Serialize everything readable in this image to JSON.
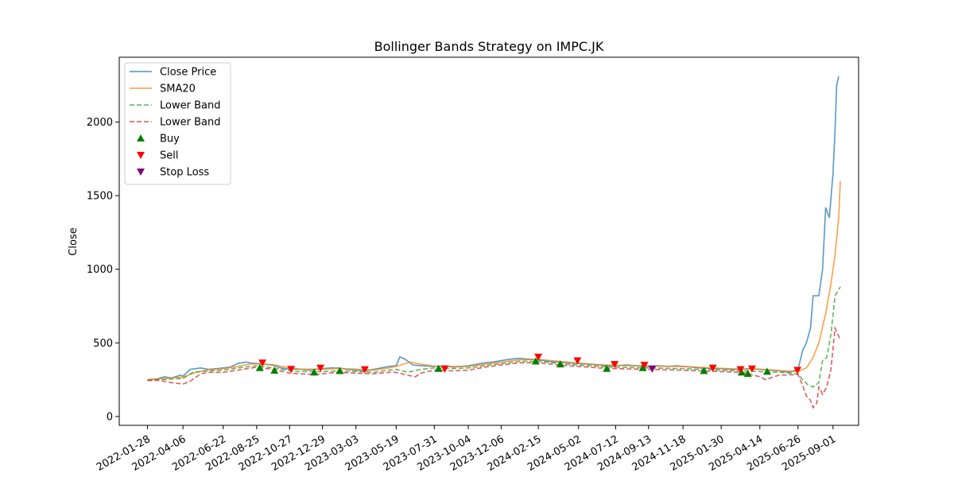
{
  "chart_data": {
    "type": "line",
    "title": "Bollinger Bands Strategy on IMPC.JK",
    "xlabel": "",
    "ylabel": "Close",
    "xlim": [
      "2021-12-05",
      "2025-10-20"
    ],
    "ylim": [
      -60,
      2440
    ],
    "yticks": [
      0,
      500,
      1000,
      1500,
      2000
    ],
    "xticks": [
      "2022-01-28",
      "2022-04-06",
      "2022-06-22",
      "2022-08-25",
      "2022-10-27",
      "2022-12-29",
      "2023-03-03",
      "2023-05-19",
      "2023-07-31",
      "2023-10-04",
      "2023-12-06",
      "2024-02-15",
      "2024-05-02",
      "2024-07-12",
      "2024-09-13",
      "2024-11-18",
      "2025-01-30",
      "2025-04-14",
      "2025-06-26",
      "2025-09-01"
    ],
    "grid": false,
    "legend_position": "upper left",
    "series": [
      {
        "name": "Close Price",
        "style": "solid",
        "color": "#1f77b4",
        "points": [
          [
            "2022-01-28",
            250
          ],
          [
            "2022-02-15",
            255
          ],
          [
            "2022-03-01",
            270
          ],
          [
            "2022-03-15",
            262
          ],
          [
            "2022-04-01",
            280
          ],
          [
            "2022-04-06",
            275
          ],
          [
            "2022-04-20",
            320
          ],
          [
            "2022-05-10",
            330
          ],
          [
            "2022-05-25",
            320
          ],
          [
            "2022-06-10",
            325
          ],
          [
            "2022-06-22",
            330
          ],
          [
            "2022-07-05",
            335
          ],
          [
            "2022-07-20",
            360
          ],
          [
            "2022-08-05",
            370
          ],
          [
            "2022-08-15",
            362
          ],
          [
            "2022-08-25",
            360
          ],
          [
            "2022-09-10",
            355
          ],
          [
            "2022-09-25",
            348
          ],
          [
            "2022-10-10",
            330
          ],
          [
            "2022-10-27",
            320
          ],
          [
            "2022-11-15",
            322
          ],
          [
            "2022-12-01",
            315
          ],
          [
            "2022-12-15",
            320
          ],
          [
            "2022-12-29",
            325
          ],
          [
            "2023-01-15",
            330
          ],
          [
            "2023-02-01",
            328
          ],
          [
            "2023-02-15",
            320
          ],
          [
            "2023-03-03",
            315
          ],
          [
            "2023-03-20",
            310
          ],
          [
            "2023-04-05",
            320
          ],
          [
            "2023-04-20",
            330
          ],
          [
            "2023-05-05",
            340
          ],
          [
            "2023-05-19",
            345
          ],
          [
            "2023-05-26",
            405
          ],
          [
            "2023-06-05",
            390
          ],
          [
            "2023-06-20",
            350
          ],
          [
            "2023-07-05",
            345
          ],
          [
            "2023-07-31",
            340
          ],
          [
            "2023-08-20",
            345
          ],
          [
            "2023-09-05",
            335
          ],
          [
            "2023-09-20",
            340
          ],
          [
            "2023-10-04",
            345
          ],
          [
            "2023-10-20",
            355
          ],
          [
            "2023-11-05",
            365
          ],
          [
            "2023-11-20",
            370
          ],
          [
            "2023-12-06",
            380
          ],
          [
            "2023-12-25",
            390
          ],
          [
            "2024-01-10",
            395
          ],
          [
            "2024-01-25",
            390
          ],
          [
            "2024-02-15",
            385
          ],
          [
            "2024-03-05",
            375
          ],
          [
            "2024-03-25",
            370
          ],
          [
            "2024-04-10",
            365
          ],
          [
            "2024-05-02",
            360
          ],
          [
            "2024-05-20",
            355
          ],
          [
            "2024-06-10",
            350
          ],
          [
            "2024-06-25",
            345
          ],
          [
            "2024-07-12",
            345
          ],
          [
            "2024-08-01",
            350
          ],
          [
            "2024-08-20",
            345
          ],
          [
            "2024-09-01",
            345
          ],
          [
            "2024-09-13",
            340
          ],
          [
            "2024-10-01",
            345
          ],
          [
            "2024-10-20",
            340
          ],
          [
            "2024-11-05",
            345
          ],
          [
            "2024-11-18",
            340
          ],
          [
            "2024-12-05",
            335
          ],
          [
            "2024-12-20",
            330
          ],
          [
            "2025-01-10",
            325
          ],
          [
            "2025-01-30",
            325
          ],
          [
            "2025-02-20",
            320
          ],
          [
            "2025-03-10",
            320
          ],
          [
            "2025-03-25",
            325
          ],
          [
            "2025-04-14",
            320
          ],
          [
            "2025-05-01",
            315
          ],
          [
            "2025-05-20",
            310
          ],
          [
            "2025-06-10",
            300
          ],
          [
            "2025-06-26",
            320
          ],
          [
            "2025-07-05",
            450
          ],
          [
            "2025-07-12",
            500
          ],
          [
            "2025-07-20",
            600
          ],
          [
            "2025-07-25",
            820
          ],
          [
            "2025-08-05",
            820
          ],
          [
            "2025-08-12",
            1000
          ],
          [
            "2025-08-18",
            1420
          ],
          [
            "2025-08-25",
            1350
          ],
          [
            "2025-09-01",
            1650
          ],
          [
            "2025-09-05",
            1950
          ],
          [
            "2025-09-08",
            2250
          ],
          [
            "2025-09-12",
            2310
          ]
        ]
      },
      {
        "name": "SMA20",
        "style": "solid",
        "color": "#ff7f0e",
        "points": [
          [
            "2022-01-28",
            250
          ],
          [
            "2022-03-01",
            258
          ],
          [
            "2022-04-06",
            268
          ],
          [
            "2022-05-01",
            300
          ],
          [
            "2022-05-25",
            318
          ],
          [
            "2022-06-22",
            325
          ],
          [
            "2022-07-20",
            340
          ],
          [
            "2022-08-10",
            355
          ],
          [
            "2022-08-25",
            358
          ],
          [
            "2022-09-25",
            352
          ],
          [
            "2022-10-27",
            330
          ],
          [
            "2022-11-15",
            322
          ],
          [
            "2022-12-29",
            320
          ],
          [
            "2023-01-25",
            326
          ],
          [
            "2023-03-03",
            322
          ],
          [
            "2023-04-05",
            315
          ],
          [
            "2023-05-05",
            330
          ],
          [
            "2023-05-19",
            340
          ],
          [
            "2023-06-15",
            370
          ],
          [
            "2023-07-05",
            355
          ],
          [
            "2023-07-31",
            342
          ],
          [
            "2023-09-05",
            340
          ],
          [
            "2023-10-04",
            340
          ],
          [
            "2023-11-05",
            355
          ],
          [
            "2023-12-06",
            370
          ],
          [
            "2024-01-10",
            385
          ],
          [
            "2024-02-15",
            388
          ],
          [
            "2024-04-10",
            370
          ],
          [
            "2024-05-02",
            362
          ],
          [
            "2024-06-10",
            352
          ],
          [
            "2024-07-12",
            347
          ],
          [
            "2024-09-13",
            342
          ],
          [
            "2024-11-18",
            340
          ],
          [
            "2024-12-20",
            334
          ],
          [
            "2025-01-30",
            327
          ],
          [
            "2025-03-10",
            322
          ],
          [
            "2025-04-14",
            320
          ],
          [
            "2025-05-20",
            313
          ],
          [
            "2025-06-26",
            305
          ],
          [
            "2025-07-12",
            330
          ],
          [
            "2025-07-25",
            400
          ],
          [
            "2025-08-05",
            500
          ],
          [
            "2025-08-18",
            700
          ],
          [
            "2025-08-28",
            900
          ],
          [
            "2025-09-05",
            1100
          ],
          [
            "2025-09-12",
            1350
          ],
          [
            "2025-09-15",
            1600
          ]
        ]
      },
      {
        "name": "Lower Band",
        "style": "dashed",
        "color": "#2ca02c",
        "points": [
          [
            "2022-01-28",
            245
          ],
          [
            "2022-02-20",
            250
          ],
          [
            "2022-03-15",
            255
          ],
          [
            "2022-04-06",
            258
          ],
          [
            "2022-04-25",
            300
          ],
          [
            "2022-05-25",
            310
          ],
          [
            "2022-06-22",
            315
          ],
          [
            "2022-07-20",
            330
          ],
          [
            "2022-08-25",
            345
          ],
          [
            "2022-09-25",
            330
          ],
          [
            "2022-10-27",
            310
          ],
          [
            "2022-11-15",
            305
          ],
          [
            "2022-12-29",
            305
          ],
          [
            "2023-01-25",
            310
          ],
          [
            "2023-03-03",
            305
          ],
          [
            "2023-04-05",
            300
          ],
          [
            "2023-05-05",
            315
          ],
          [
            "2023-05-19",
            320
          ],
          [
            "2023-06-10",
            300
          ],
          [
            "2023-07-05",
            320
          ],
          [
            "2023-07-31",
            330
          ],
          [
            "2023-09-05",
            325
          ],
          [
            "2023-10-04",
            330
          ],
          [
            "2023-11-05",
            345
          ],
          [
            "2023-12-06",
            360
          ],
          [
            "2024-01-10",
            375
          ],
          [
            "2024-02-15",
            375
          ],
          [
            "2024-04-10",
            355
          ],
          [
            "2024-05-02",
            350
          ],
          [
            "2024-06-10",
            340
          ],
          [
            "2024-07-12",
            335
          ],
          [
            "2024-09-13",
            330
          ],
          [
            "2024-11-18",
            325
          ],
          [
            "2024-12-20",
            320
          ],
          [
            "2025-01-30",
            315
          ],
          [
            "2025-03-10",
            310
          ],
          [
            "2025-04-14",
            305
          ],
          [
            "2025-05-20",
            300
          ],
          [
            "2025-06-26",
            290
          ],
          [
            "2025-07-05",
            250
          ],
          [
            "2025-07-15",
            215
          ],
          [
            "2025-07-25",
            200
          ],
          [
            "2025-08-05",
            230
          ],
          [
            "2025-08-12",
            380
          ],
          [
            "2025-08-20",
            400
          ],
          [
            "2025-08-28",
            560
          ],
          [
            "2025-09-05",
            820
          ],
          [
            "2025-09-15",
            880
          ]
        ]
      },
      {
        "name": "Lower Band",
        "style": "dashed",
        "color": "#d62728",
        "points": [
          [
            "2022-01-28",
            245
          ],
          [
            "2022-02-20",
            245
          ],
          [
            "2022-03-15",
            230
          ],
          [
            "2022-04-06",
            220
          ],
          [
            "2022-04-20",
            240
          ],
          [
            "2022-05-10",
            290
          ],
          [
            "2022-05-25",
            300
          ],
          [
            "2022-06-22",
            300
          ],
          [
            "2022-07-20",
            315
          ],
          [
            "2022-08-25",
            335
          ],
          [
            "2022-09-25",
            320
          ],
          [
            "2022-10-27",
            295
          ],
          [
            "2022-11-15",
            290
          ],
          [
            "2022-12-15",
            285
          ],
          [
            "2022-12-29",
            290
          ],
          [
            "2023-01-25",
            300
          ],
          [
            "2023-03-03",
            295
          ],
          [
            "2023-04-05",
            290
          ],
          [
            "2023-05-05",
            300
          ],
          [
            "2023-05-19",
            300
          ],
          [
            "2023-06-10",
            280
          ],
          [
            "2023-06-25",
            270
          ],
          [
            "2023-07-05",
            295
          ],
          [
            "2023-07-31",
            315
          ],
          [
            "2023-09-05",
            310
          ],
          [
            "2023-10-04",
            315
          ],
          [
            "2023-11-05",
            335
          ],
          [
            "2023-12-06",
            350
          ],
          [
            "2024-01-10",
            365
          ],
          [
            "2024-02-15",
            365
          ],
          [
            "2024-04-10",
            345
          ],
          [
            "2024-05-02",
            340
          ],
          [
            "2024-06-10",
            330
          ],
          [
            "2024-07-12",
            325
          ],
          [
            "2024-09-13",
            320
          ],
          [
            "2024-11-18",
            315
          ],
          [
            "2024-12-20",
            310
          ],
          [
            "2025-01-30",
            305
          ],
          [
            "2025-03-10",
            300
          ],
          [
            "2025-04-14",
            270
          ],
          [
            "2025-04-25",
            250
          ],
          [
            "2025-05-20",
            280
          ],
          [
            "2025-06-26",
            285
          ],
          [
            "2025-07-05",
            210
          ],
          [
            "2025-07-12",
            140
          ],
          [
            "2025-07-20",
            110
          ],
          [
            "2025-07-25",
            60
          ],
          [
            "2025-08-01",
            90
          ],
          [
            "2025-08-05",
            200
          ],
          [
            "2025-08-12",
            150
          ],
          [
            "2025-08-20",
            200
          ],
          [
            "2025-08-28",
            320
          ],
          [
            "2025-09-05",
            600
          ],
          [
            "2025-09-15",
            520
          ]
        ]
      }
    ],
    "markers": [
      {
        "name": "Buy",
        "shape": "triangle-up",
        "color": "#008000",
        "points": [
          [
            "2022-08-31",
            330
          ],
          [
            "2022-09-28",
            312
          ],
          [
            "2022-12-13",
            300
          ],
          [
            "2023-01-31",
            310
          ],
          [
            "2023-08-08",
            325
          ],
          [
            "2024-02-10",
            375
          ],
          [
            "2024-03-28",
            355
          ],
          [
            "2024-06-25",
            325
          ],
          [
            "2024-09-02",
            330
          ],
          [
            "2024-12-28",
            310
          ],
          [
            "2025-03-10",
            300
          ],
          [
            "2025-03-22",
            290
          ],
          [
            "2025-04-28",
            305
          ]
        ]
      },
      {
        "name": "Sell",
        "shape": "triangle-down",
        "color": "#ff0000",
        "points": [
          [
            "2022-09-05",
            365
          ],
          [
            "2022-10-30",
            322
          ],
          [
            "2022-12-25",
            330
          ],
          [
            "2023-03-20",
            320
          ],
          [
            "2023-08-20",
            325
          ],
          [
            "2024-02-15",
            405
          ],
          [
            "2024-04-30",
            380
          ],
          [
            "2024-07-10",
            355
          ],
          [
            "2024-09-05",
            350
          ],
          [
            "2025-01-14",
            330
          ],
          [
            "2025-03-08",
            320
          ],
          [
            "2025-03-30",
            325
          ],
          [
            "2025-06-25",
            315
          ]
        ]
      },
      {
        "name": "Stop Loss",
        "shape": "triangle-down",
        "color": "#800080",
        "points": [
          [
            "2024-09-20",
            325
          ]
        ]
      }
    ]
  }
}
